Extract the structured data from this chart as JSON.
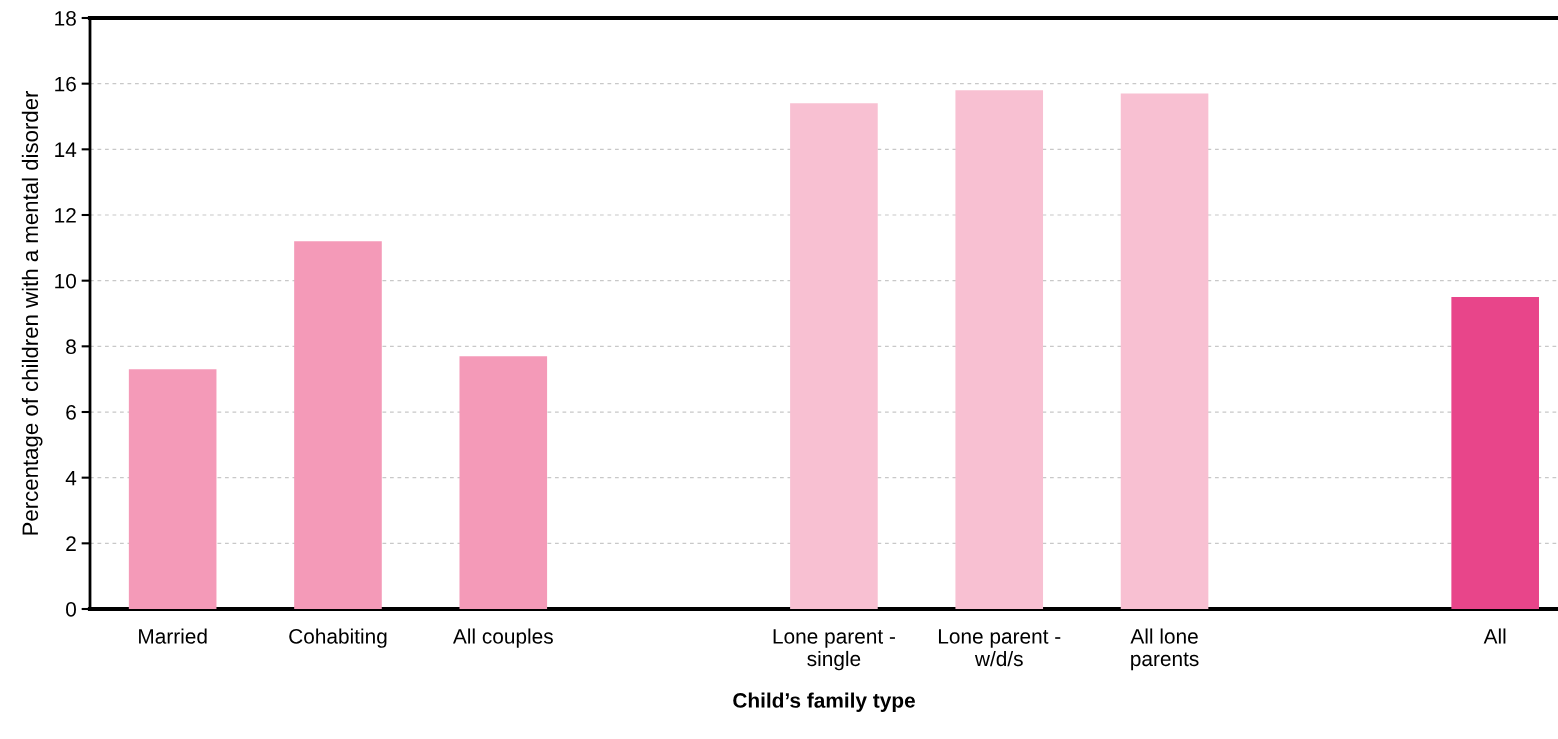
{
  "chart_data": {
    "type": "bar",
    "xlabel": "Child’s family type",
    "ylabel": "Percentage of children with a mental disorder",
    "categories": [
      "Married",
      "Cohabiting",
      "All couples",
      null,
      "Lone parent -\nsingle",
      "Lone parent -\nw/d/s",
      "All lone\nparents",
      null,
      "All"
    ],
    "values": [
      7.3,
      11.2,
      7.7,
      null,
      15.4,
      15.8,
      15.7,
      null,
      9.5
    ],
    "colors": [
      "#f49ab8",
      "#f49ab8",
      "#f49ab8",
      "#ffffff",
      "#f8c0d2",
      "#f8c0d2",
      "#f8c0d2",
      "#ffffff",
      "#e8458a"
    ],
    "ylim": [
      0,
      18
    ],
    "yticks": [
      0,
      2,
      4,
      6,
      8,
      10,
      12,
      14,
      16,
      18
    ],
    "grid": "y",
    "legend": false
  }
}
